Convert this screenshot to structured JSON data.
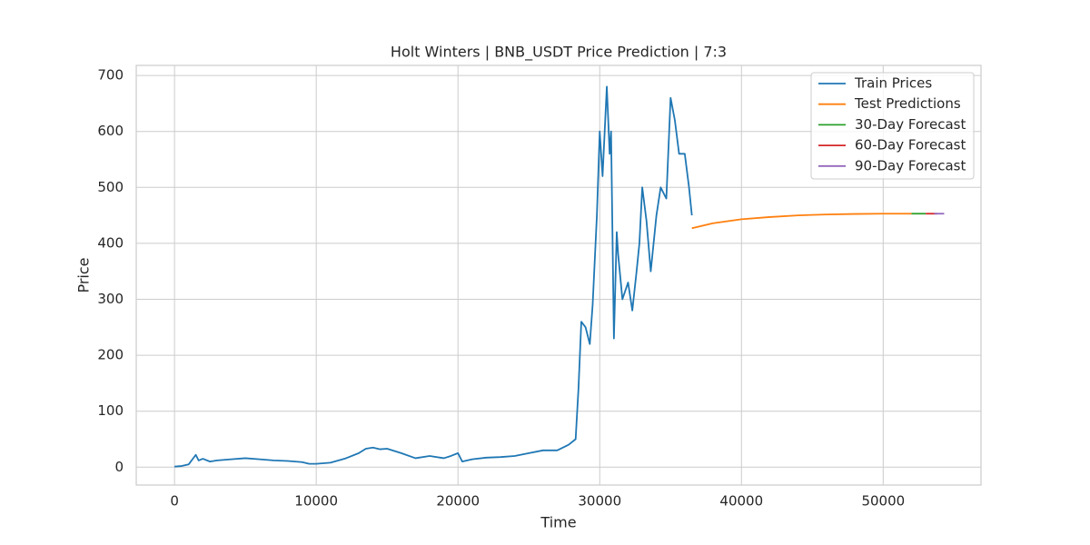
{
  "chart_data": {
    "type": "line",
    "title": "Holt Winters | BNB_USDT Price Prediction | 7:3",
    "x_label": "Time",
    "y_label": "Price",
    "xlim": [
      -2700,
      56900
    ],
    "ylim": [
      -32,
      718
    ],
    "xticks": [
      0,
      10000,
      20000,
      30000,
      40000,
      50000
    ],
    "yticks": [
      0,
      100,
      200,
      300,
      400,
      500,
      600,
      700
    ],
    "grid": true,
    "legend_position": "upper-right",
    "series": [
      {
        "name": "Train Prices",
        "color": "#1f77b4",
        "x": [
          0,
          500,
          1000,
          1500,
          1700,
          2000,
          2500,
          3000,
          4000,
          5000,
          6000,
          7000,
          8000,
          9000,
          9500,
          10000,
          11000,
          12000,
          13000,
          13500,
          14000,
          14500,
          15000,
          16000,
          17000,
          18000,
          19000,
          19500,
          20000,
          20300,
          21000,
          22000,
          23000,
          24000,
          25000,
          26000,
          27000,
          27800,
          28300,
          28500,
          28700,
          29000,
          29300,
          29500,
          29800,
          30000,
          30200,
          30500,
          30700,
          30800,
          31000,
          31200,
          31300,
          31600,
          32000,
          32300,
          32600,
          32800,
          33000,
          33300,
          33600,
          34000,
          34300,
          34700,
          35000,
          35300,
          35600,
          36000,
          36300,
          36500
        ],
        "values": [
          1,
          2,
          5,
          22,
          12,
          15,
          10,
          12,
          14,
          16,
          14,
          12,
          11,
          9,
          6,
          6,
          8,
          15,
          25,
          33,
          35,
          32,
          33,
          25,
          16,
          20,
          16,
          20,
          25,
          10,
          14,
          17,
          18,
          20,
          25,
          30,
          30,
          40,
          50,
          140,
          260,
          250,
          220,
          290,
          450,
          600,
          520,
          680,
          560,
          600,
          230,
          420,
          380,
          300,
          330,
          280,
          350,
          400,
          500,
          440,
          350,
          450,
          500,
          480,
          660,
          620,
          560,
          560,
          500,
          450
        ]
      },
      {
        "name": "Test Predictions",
        "color": "#ff7f0e",
        "x": [
          36500,
          38000,
          40000,
          42000,
          44000,
          46000,
          48000,
          50000,
          52000
        ],
        "values": [
          427,
          436,
          443,
          447,
          450,
          451.5,
          452.5,
          453,
          453
        ]
      },
      {
        "name": "30-Day Forecast",
        "color": "#2ca02c",
        "x": [
          52000,
          53000
        ],
        "values": [
          453,
          453
        ]
      },
      {
        "name": "60-Day Forecast",
        "color": "#d62728",
        "x": [
          53000,
          53800
        ],
        "values": [
          453,
          453
        ]
      },
      {
        "name": "90-Day Forecast",
        "color": "#9467bd",
        "x": [
          53600,
          54300
        ],
        "values": [
          453,
          453
        ]
      }
    ]
  }
}
